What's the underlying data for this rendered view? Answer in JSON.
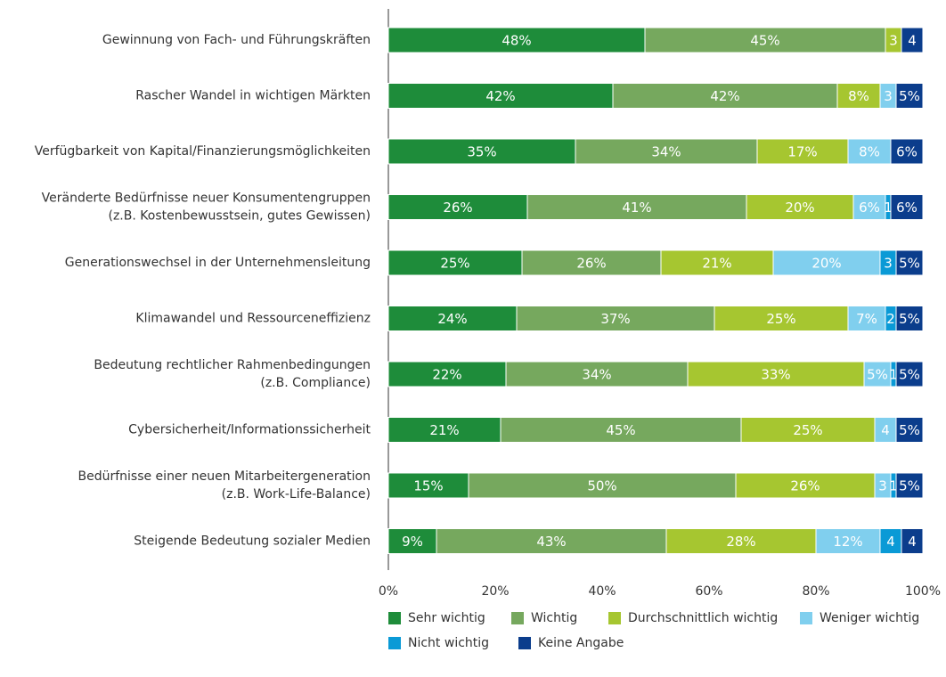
{
  "chart_data": {
    "type": "stacked-bar-horizontal",
    "categories": [
      "Gewinnung von Fach- und Führungskräften",
      "Rascher Wandel in wichtigen Märkten",
      "Verfügbarkeit von Kapital/Finanzierungsmöglichkeiten",
      "Veränderte Bedürfnisse neuer Konsumentengruppen\n(z.B. Kostenbewusstsein, gutes Gewissen)",
      "Generationswechsel in der Unternehmensleitung",
      "Klimawandel und Ressourceneffizienz",
      "Bedeutung rechtlicher Rahmenbedingungen\n(z.B. Compliance)",
      "Cybersicherheit/Informationssicherheit",
      "Bedürfnisse einer neuen Mitarbeitergeneration\n(z.B. Work-Life-Balance)",
      "Steigende Bedeutung sozialer Medien"
    ],
    "series": [
      {
        "name": "Sehr wichtig",
        "color": "#1e8c3a",
        "values": [
          48,
          42,
          35,
          26,
          25,
          24,
          22,
          21,
          15,
          9
        ],
        "value_labels": [
          "48%",
          "42%",
          "35%",
          "26%",
          "25%",
          "24%",
          "22%",
          "21%",
          "15%",
          "9%"
        ]
      },
      {
        "name": "Wichtig",
        "color": "#76a85e",
        "values": [
          45,
          42,
          34,
          41,
          26,
          37,
          34,
          45,
          50,
          43
        ],
        "value_labels": [
          "45%",
          "42%",
          "34%",
          "41%",
          "26%",
          "37%",
          "34%",
          "45%",
          "50%",
          "43%"
        ]
      },
      {
        "name": "Durchschnittlich wichtig",
        "color": "#a6c630",
        "values": [
          3,
          8,
          17,
          20,
          21,
          25,
          33,
          25,
          26,
          28
        ],
        "value_labels": [
          "3",
          "8%",
          "17%",
          "20%",
          "21%",
          "25%",
          "33%",
          "25%",
          "26%",
          "28%"
        ]
      },
      {
        "name": "Weniger wichtig",
        "color": "#80cfee",
        "values": [
          0,
          3,
          8,
          6,
          20,
          7,
          5,
          4,
          3,
          12
        ],
        "value_labels": [
          null,
          "3",
          "8%",
          "6%",
          "20%",
          "7%",
          "5%",
          "4",
          "3",
          "12%"
        ]
      },
      {
        "name": "Nicht wichtig",
        "color": "#0a9ad6",
        "values": [
          0,
          0,
          0,
          1,
          3,
          2,
          1,
          0,
          1,
          4
        ],
        "value_labels": [
          null,
          null,
          null,
          "1",
          "3",
          "2",
          "1",
          null,
          "1",
          "4"
        ]
      },
      {
        "name": "Keine Angabe",
        "color": "#0b3d8c",
        "values": [
          4,
          5,
          6,
          6,
          5,
          5,
          5,
          5,
          5,
          4
        ],
        "value_labels": [
          "4",
          "5%",
          "6%",
          "6%",
          "5%",
          "5%",
          "5%",
          "5%",
          "5%",
          "4"
        ]
      }
    ],
    "xlim": [
      0,
      100
    ],
    "xticks": [
      {
        "value": 0,
        "label": "0%"
      },
      {
        "value": 20,
        "label": "20%"
      },
      {
        "value": 40,
        "label": "40%"
      },
      {
        "value": 60,
        "label": "60%"
      },
      {
        "value": 80,
        "label": "80%"
      },
      {
        "value": 100,
        "label": "100%"
      }
    ]
  }
}
